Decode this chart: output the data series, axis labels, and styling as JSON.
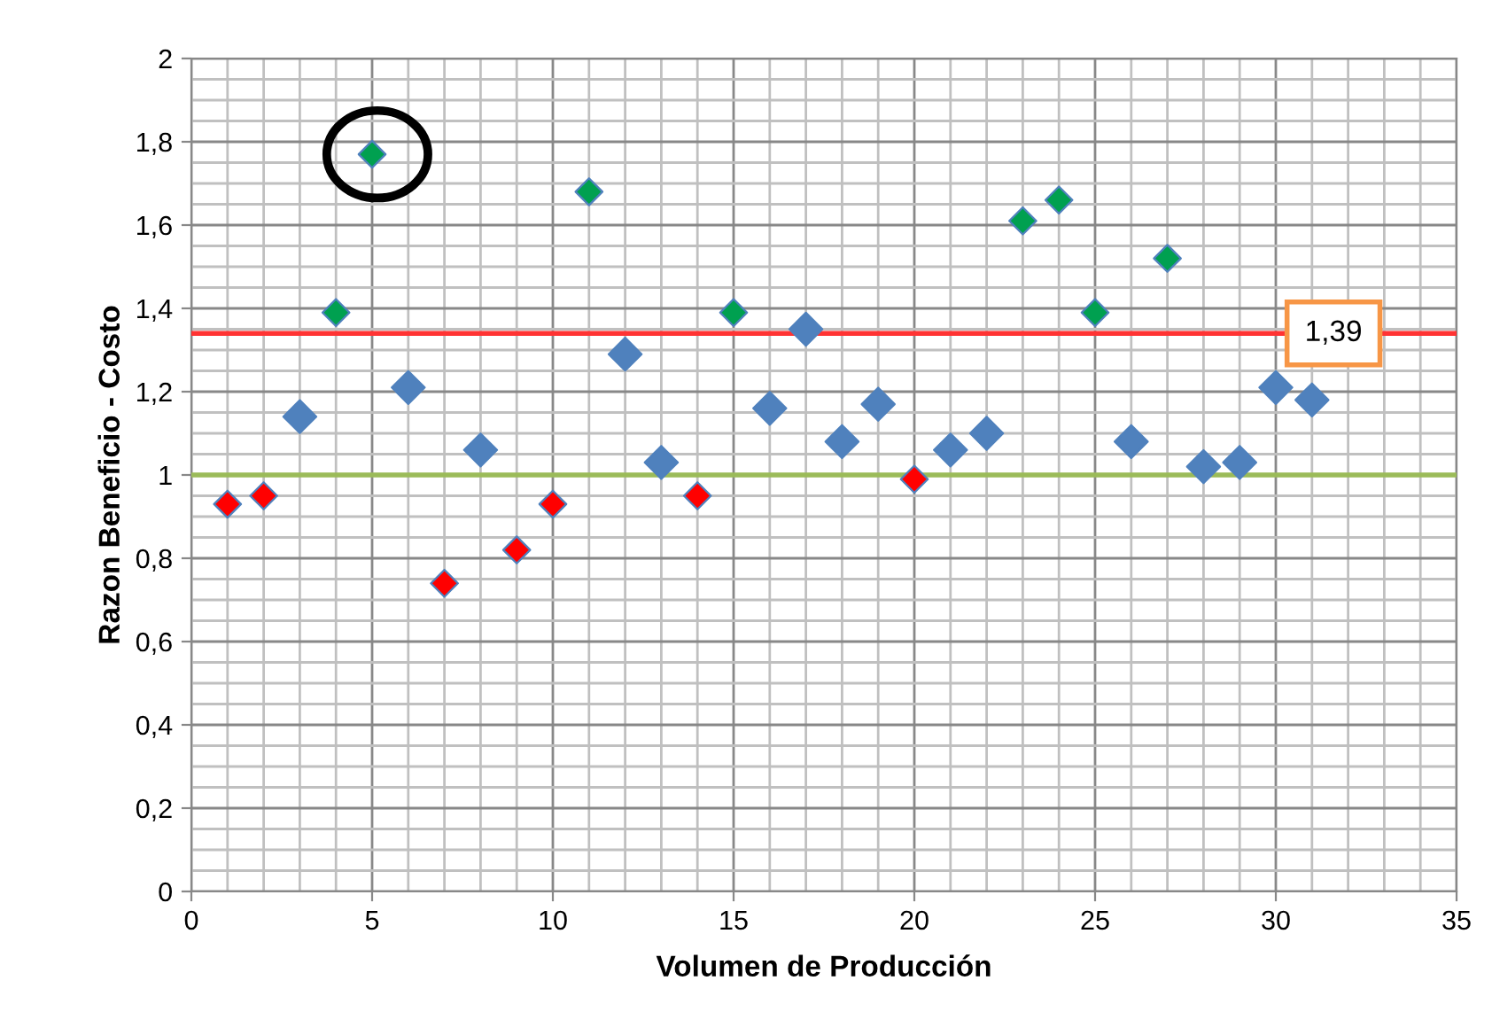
{
  "chart_data": {
    "type": "scatter",
    "xlabel": "Volumen de Producción",
    "ylabel": "Razon Beneficio - Costo",
    "series": [
      {
        "color": "#ff0000",
        "x": [
          1,
          2,
          7,
          9,
          10,
          14,
          20
        ],
        "values": [
          0.93,
          0.95,
          0.74,
          0.82,
          0.93,
          0.95,
          0.99
        ]
      },
      {
        "color": "#4f81bd",
        "x": [
          3,
          6,
          8,
          12,
          13,
          16,
          17,
          18,
          19,
          21,
          22,
          26,
          28,
          29,
          30,
          31
        ],
        "values": [
          1.14,
          1.21,
          1.06,
          1.29,
          1.03,
          1.16,
          1.35,
          1.08,
          1.17,
          1.06,
          1.1,
          1.08,
          1.02,
          1.03,
          1.21,
          1.18
        ]
      },
      {
        "color": "#00a050",
        "x": [
          4,
          5,
          11,
          15,
          23,
          24,
          25,
          27
        ],
        "values": [
          1.39,
          1.77,
          1.68,
          1.39,
          1.61,
          1.66,
          1.39,
          1.52
        ]
      }
    ],
    "xlim": [
      0,
      35
    ],
    "xticks": [
      0,
      5,
      10,
      15,
      20,
      25,
      30,
      35
    ],
    "ylim": [
      0,
      2
    ],
    "yticks": [
      {
        "value": 0,
        "label": "0"
      },
      {
        "value": 0.2,
        "label": "0,2"
      },
      {
        "value": 0.4,
        "label": "0,4"
      },
      {
        "value": 0.6,
        "label": "0,6"
      },
      {
        "value": 0.8,
        "label": "0,8"
      },
      {
        "value": 1,
        "label": "1"
      },
      {
        "value": 1.2,
        "label": "1,2"
      },
      {
        "value": 1.4,
        "label": "1,4"
      },
      {
        "value": 1.6,
        "label": "1,6"
      },
      {
        "value": 1.8,
        "label": "1,8"
      },
      {
        "value": 2,
        "label": "2"
      }
    ],
    "annotations": [
      "1,39"
    ],
    "ref_lines": [
      {
        "axis": "y",
        "value": 1.34,
        "color": "#ff3333"
      },
      {
        "axis": "y",
        "value": 1.0,
        "color": "#9bbb59"
      }
    ],
    "grid": true,
    "marker": "diamond",
    "legend": false
  }
}
